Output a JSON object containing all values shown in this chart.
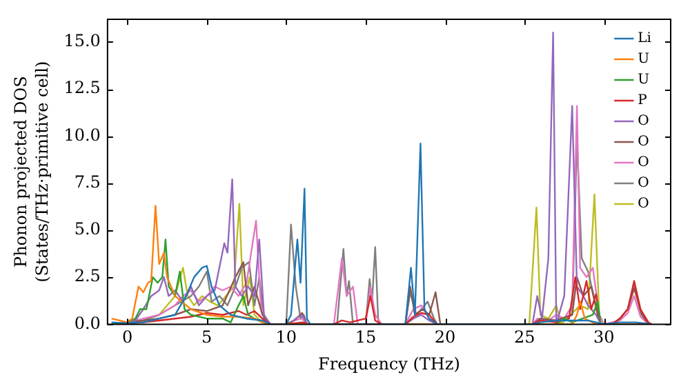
{
  "chart_data": {
    "type": "line",
    "xlabel": "Frequency (THz)",
    "ylabel": "Phonon projected DOS\n(States/THz·primitive cell)",
    "xlim": [
      -1.25,
      34.2
    ],
    "xticks": [
      0,
      5,
      10,
      15,
      20,
      25,
      30
    ],
    "ylim": [
      0,
      16.2
    ],
    "yticks": [
      {
        "value": 0,
        "label": "0.0"
      },
      2.5,
      {
        "value": 5,
        "label": "5.0"
      },
      7.5,
      {
        "value": 10,
        "label": "10.0"
      },
      12.5,
      {
        "value": 15,
        "label": "15.0"
      }
    ],
    "grid": false,
    "legend": "top right",
    "marker": "none",
    "line_style": "solid",
    "series": [
      {
        "name": "Li",
        "color": "#1f77b4",
        "x": [
          -1,
          0,
          1,
          2,
          3,
          3.7,
          4.2,
          4.7,
          5,
          5.3,
          5.8,
          6.5,
          7.5,
          8.5,
          9,
          10,
          10.3,
          10.7,
          10.9,
          11.15,
          11.3,
          11.5,
          17.5,
          17.85,
          18.1,
          18.45,
          18.7,
          19,
          19.5,
          25.5,
          26,
          27,
          28,
          29,
          30,
          31,
          32,
          33
        ],
        "values": [
          0.1,
          0.05,
          0.1,
          0.3,
          0.5,
          1.5,
          2.5,
          3,
          3.1,
          2,
          1,
          0.5,
          0.3,
          0.2,
          0,
          0,
          0.5,
          4.5,
          2.2,
          7.2,
          0.3,
          0,
          0,
          3,
          0.5,
          9.6,
          0.8,
          0.3,
          0,
          0,
          0.1,
          0.2,
          0.2,
          0.2,
          0,
          0.1,
          0.1,
          0
        ]
      },
      {
        "name": "U",
        "color": "#ff7f0e",
        "x": [
          -1,
          -0.5,
          0,
          0.3,
          0.7,
          1,
          1.3,
          1.5,
          1.77,
          2,
          2.3,
          2.5,
          3,
          4,
          5,
          6,
          7,
          8,
          8.8,
          28,
          28.3,
          28.5,
          28.8,
          29.5,
          33
        ],
        "values": [
          0.3,
          0.2,
          0.1,
          0.3,
          2,
          1.7,
          2.2,
          2.3,
          6.3,
          3.2,
          3.8,
          2.5,
          1.5,
          0.8,
          0.5,
          0.4,
          0.4,
          0.3,
          0,
          0,
          0.5,
          1.2,
          0.3,
          0,
          0
        ]
      },
      {
        "name": "U",
        "color": "#2ca02c",
        "x": [
          -1,
          0,
          0.5,
          0.8,
          1.2,
          1.6,
          1.9,
          2.2,
          2.4,
          2.6,
          3,
          3.3,
          3.6,
          4,
          5,
          6,
          6.5,
          7,
          7.3,
          7.6,
          8,
          8.5,
          9,
          27,
          27.5,
          28,
          29.3,
          29.6,
          29.8,
          33
        ],
        "values": [
          0,
          0.1,
          0.3,
          0.8,
          0.8,
          2.5,
          2.2,
          2.5,
          4.5,
          2,
          1.5,
          2.8,
          0.8,
          0.5,
          0.3,
          0.3,
          0.1,
          1,
          1.5,
          0.5,
          0.3,
          0.1,
          0,
          0,
          0.3,
          0.1,
          0.5,
          1.2,
          0,
          0
        ]
      },
      {
        "name": "P",
        "color": "#d62728",
        "x": [
          -1,
          0,
          1,
          2,
          3,
          4,
          5,
          6,
          7,
          7.5,
          8,
          8.5,
          9,
          10,
          11,
          11.5,
          13,
          13.5,
          14,
          15,
          15.3,
          15.6,
          16,
          17.5,
          18,
          18.5,
          19,
          19.5,
          25.5,
          26,
          27,
          27.8,
          28.2,
          28.5,
          28.9,
          29.2,
          29.5,
          29.8,
          30.5,
          31,
          31.5,
          31.9,
          32.3,
          32.8,
          33
        ],
        "values": [
          0,
          0.05,
          0.1,
          0.2,
          0.3,
          0.4,
          0.6,
          0.5,
          0.7,
          0.5,
          0.7,
          0.3,
          0,
          0,
          0.1,
          0,
          0,
          0.2,
          0.1,
          0.3,
          1.5,
          0.2,
          0,
          0,
          0.4,
          0.6,
          0.5,
          0,
          0,
          0.2,
          0.1,
          0.3,
          2.5,
          0.8,
          2.3,
          0.8,
          1.6,
          0,
          0,
          0.3,
          0.8,
          2.3,
          0.8,
          0.1,
          0
        ]
      },
      {
        "name": "O",
        "color": "#9467bd",
        "x": [
          -1,
          0,
          0.5,
          1,
          1.5,
          2,
          2.3,
          2.6,
          3,
          3.5,
          4,
          4.5,
          5,
          5.5,
          6.1,
          6.3,
          6.6,
          6.8,
          7.2,
          7.6,
          8,
          8.3,
          8.6,
          9,
          10.2,
          10.6,
          11,
          11.3,
          17.5,
          18,
          18.5,
          19,
          19.5,
          25.5,
          25.8,
          26.1,
          26.5,
          26.8,
          27,
          27.5,
          28,
          28.3,
          28.7,
          29,
          29.5,
          29.8,
          33
        ],
        "values": [
          0,
          0.05,
          0.2,
          0.8,
          1.5,
          1.8,
          2.5,
          1.5,
          1.8,
          1.2,
          2,
          1,
          1.5,
          1.8,
          4.3,
          3.8,
          7.7,
          2,
          1.5,
          2,
          1.5,
          4.5,
          0.5,
          0,
          0,
          0.3,
          0.5,
          0,
          0,
          0.3,
          0.5,
          0.2,
          0,
          0,
          1.5,
          0.3,
          3.5,
          15.5,
          0,
          1.5,
          11.6,
          2,
          1.5,
          1,
          0.5,
          0,
          0
        ]
      },
      {
        "name": "O",
        "color": "#8c564b",
        "x": [
          -1,
          0,
          1,
          2,
          3,
          4,
          5,
          6,
          6.8,
          7.3,
          7.6,
          8,
          8.5,
          9,
          10,
          10.5,
          11,
          11.3,
          17.5,
          17.8,
          18.1,
          18.6,
          19,
          19.4,
          19.7,
          25.5,
          26,
          27,
          28,
          28.3,
          28.7,
          29.2,
          29.6,
          29.8,
          30.5,
          31,
          31.5,
          31.9,
          32.4,
          32.8,
          33
        ],
        "values": [
          0,
          0.1,
          0.2,
          0.3,
          0.5,
          0.8,
          0.7,
          1,
          2.5,
          3.3,
          1,
          2,
          0.5,
          0,
          0,
          0.2,
          0.6,
          0,
          0,
          2,
          0.5,
          0.8,
          0.5,
          1.7,
          0,
          0,
          0.3,
          0.2,
          0.5,
          2.5,
          1.5,
          2,
          0.5,
          0,
          0,
          0.3,
          0.8,
          1.9,
          0.5,
          0,
          0
        ]
      },
      {
        "name": "O",
        "color": "#e377c2",
        "x": [
          -1,
          0,
          1,
          2,
          3,
          3.5,
          4,
          4.5,
          5,
          5.5,
          6,
          6.5,
          7,
          7.5,
          8.1,
          8.4,
          8.7,
          9,
          10,
          10.5,
          11,
          11.3,
          13,
          13.5,
          13.8,
          14.2,
          14.5,
          15,
          15.3,
          15.6,
          16,
          17.5,
          18,
          18.5,
          19,
          19.5,
          25.5,
          25.8,
          26.5,
          27,
          27.5,
          28,
          28.3,
          28.5,
          28.9,
          29.3,
          29.7,
          30,
          31,
          31.5,
          31.9,
          32.3,
          32.8,
          33
        ],
        "values": [
          0,
          0.1,
          0.3,
          0.5,
          1,
          1.5,
          1.8,
          1.2,
          1.5,
          2,
          1.8,
          2,
          1.5,
          2.2,
          5.5,
          1,
          0.3,
          0,
          0,
          0.2,
          0.3,
          0,
          0,
          3.5,
          1.5,
          2,
          0,
          0,
          2,
          0.5,
          0,
          0,
          0.8,
          1,
          0.3,
          0,
          0,
          0.3,
          0.2,
          0.5,
          0.3,
          1,
          11.6,
          3,
          2.5,
          3,
          0.5,
          0,
          0.2,
          0.6,
          1.5,
          0.4,
          0,
          0
        ]
      },
      {
        "name": "O",
        "color": "#7f7f7f",
        "x": [
          -1,
          0,
          1,
          2,
          3,
          4,
          4.5,
          5,
          5.3,
          5.8,
          6.3,
          6.8,
          7.2,
          7.65,
          8,
          8.3,
          8.6,
          9,
          10,
          10.3,
          10.6,
          10.9,
          11.1,
          11.3,
          13.2,
          13.6,
          13.8,
          13.95,
          14.2,
          15,
          15.25,
          15.4,
          15.6,
          15.8,
          17.5,
          17.8,
          18.2,
          18.9,
          19.3,
          19.5,
          25.5,
          26,
          27,
          28,
          28.3,
          28.6,
          29,
          29.5,
          29.8,
          30.5,
          31,
          31.5,
          31.9,
          32.3,
          32.8,
          33
        ],
        "values": [
          0,
          0.05,
          0.2,
          0.5,
          1,
          1.5,
          2,
          2.8,
          1.2,
          1.5,
          1,
          2,
          3,
          3.3,
          1,
          2.5,
          0.3,
          0,
          0,
          5.3,
          2,
          0.3,
          0.5,
          0,
          0,
          4,
          1.5,
          2.3,
          0,
          0,
          2.4,
          1.2,
          4.1,
          0,
          0,
          1.7,
          0.5,
          1.2,
          0.3,
          0,
          0,
          0.3,
          0.2,
          0.5,
          9.8,
          3.5,
          2.8,
          1,
          0,
          0,
          0.3,
          0.8,
          2.1,
          0.6,
          0,
          0
        ]
      },
      {
        "name": "O",
        "color": "#bcbd22",
        "x": [
          -1,
          0,
          1,
          2,
          2.5,
          3,
          3.5,
          3.8,
          4.2,
          4.7,
          5.2,
          5.7,
          6.2,
          6.7,
          7.05,
          7.3,
          7.7,
          8,
          8.5,
          9,
          25.3,
          25.75,
          26,
          26.5,
          27,
          27.3,
          28.5,
          29,
          29.4,
          29.7,
          30,
          33
        ],
        "values": [
          0,
          0.05,
          0.2,
          0.5,
          1,
          1.5,
          3,
          1.5,
          1,
          1.5,
          1.2,
          1,
          1.5,
          2,
          6.4,
          1,
          2.5,
          0.5,
          0.1,
          0,
          0,
          6.2,
          0.5,
          0.3,
          1,
          0,
          1,
          0.8,
          6.9,
          0.5,
          0,
          0
        ]
      }
    ]
  }
}
